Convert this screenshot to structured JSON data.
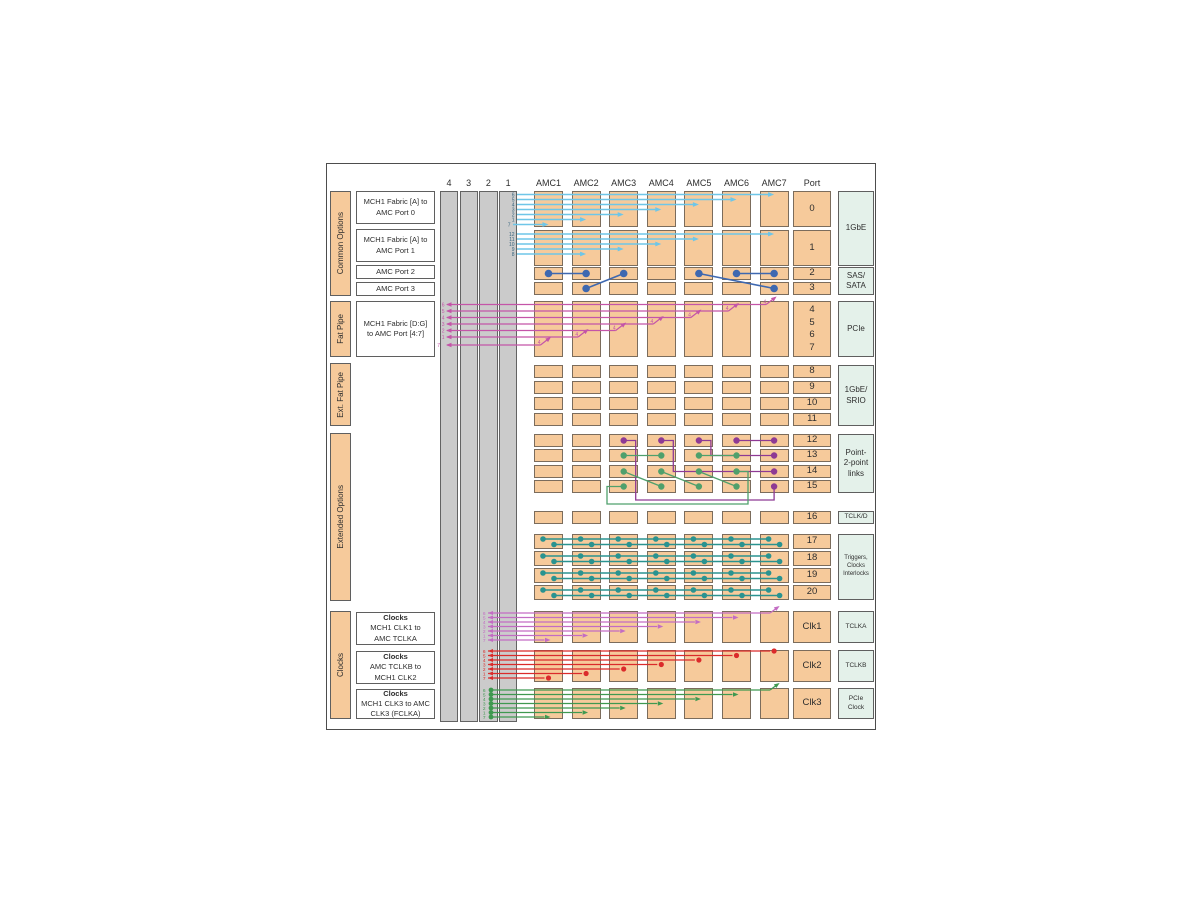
{
  "header": {
    "mch_columns": [
      "4",
      "3",
      "2",
      "1"
    ],
    "amc_slots": [
      "AMC1",
      "AMC2",
      "AMC3",
      "AMC4",
      "AMC5",
      "AMC6",
      "AMC7"
    ],
    "port_label": "Port"
  },
  "left_groups": [
    {
      "id": "common-options",
      "label": "Common Options"
    },
    {
      "id": "fat-pipe",
      "label": "Fat Pipe"
    },
    {
      "id": "ext-fat-pipe",
      "label": "Ext. Fat Pipe"
    },
    {
      "id": "extended-options",
      "label": "Extended Options"
    },
    {
      "id": "clocks",
      "label": "Clocks"
    }
  ],
  "label_boxes": [
    {
      "id": "fabric-a-port0",
      "title": "",
      "lines": [
        "MCH1 Fabric [A] to",
        "AMC Port 0"
      ]
    },
    {
      "id": "fabric-a-port1",
      "title": "",
      "lines": [
        "MCH1 Fabric [A] to",
        "AMC Port 1"
      ]
    },
    {
      "id": "amc-port2",
      "title": "",
      "lines": [
        "AMC Port 2"
      ]
    },
    {
      "id": "amc-port3",
      "title": "",
      "lines": [
        "AMC Port 3"
      ]
    },
    {
      "id": "fabric-dg",
      "title": "",
      "lines": [
        "MCH1 Fabric [D:G]",
        "to AMC Port [4:7]"
      ]
    },
    {
      "id": "clk1-label",
      "title": "Clocks",
      "lines": [
        "MCH1 CLK1 to",
        "AMC TCLKA"
      ]
    },
    {
      "id": "clk2-label",
      "title": "Clocks",
      "lines": [
        "AMC TCLKB to",
        "MCH1 CLK2"
      ]
    },
    {
      "id": "clk3-label",
      "title": "Clocks",
      "lines": [
        "MCH1 CLK3 to AMC",
        "CLK3 (FCLKA)"
      ]
    }
  ],
  "port_column": {
    "rows": [
      {
        "row": "p0",
        "labels": [
          "0"
        ]
      },
      {
        "row": "p1",
        "labels": [
          "1"
        ]
      },
      {
        "row": "p2",
        "labels": [
          "2"
        ]
      },
      {
        "row": "p3",
        "labels": [
          "3"
        ]
      },
      {
        "row": "fat",
        "labels": [
          "4",
          "5",
          "6",
          "7"
        ]
      },
      {
        "row": "p8",
        "labels": [
          "8"
        ]
      },
      {
        "row": "p9",
        "labels": [
          "9"
        ]
      },
      {
        "row": "p10",
        "labels": [
          "10"
        ]
      },
      {
        "row": "p11",
        "labels": [
          "11"
        ]
      },
      {
        "row": "p12",
        "labels": [
          "12"
        ]
      },
      {
        "row": "p13",
        "labels": [
          "13"
        ]
      },
      {
        "row": "p14",
        "labels": [
          "14"
        ]
      },
      {
        "row": "p15",
        "labels": [
          "15"
        ]
      },
      {
        "row": "p16",
        "labels": [
          "16"
        ]
      },
      {
        "row": "p17",
        "labels": [
          "17"
        ]
      },
      {
        "row": "p18",
        "labels": [
          "18"
        ]
      },
      {
        "row": "p19",
        "labels": [
          "19"
        ]
      },
      {
        "row": "p20",
        "labels": [
          "20"
        ]
      },
      {
        "row": "clk1",
        "labels": [
          "Clk1"
        ]
      },
      {
        "row": "clk2",
        "labels": [
          "Clk2"
        ]
      },
      {
        "row": "clk3",
        "labels": [
          "Clk3"
        ]
      }
    ]
  },
  "right_labels": [
    {
      "id": "1gbe",
      "rows": [
        "p0",
        "p1"
      ],
      "lines": [
        "1GbE"
      ]
    },
    {
      "id": "sas-sata",
      "rows": [
        "p2",
        "p3"
      ],
      "lines": [
        "SAS/",
        "SATA"
      ]
    },
    {
      "id": "pcie",
      "rows": [
        "fat",
        "fat"
      ],
      "lines": [
        "PCIe"
      ]
    },
    {
      "id": "1gbe-srio",
      "rows": [
        "p8",
        "p11"
      ],
      "lines": [
        "1GbE/",
        "SRIO"
      ]
    },
    {
      "id": "p2p-links",
      "rows": [
        "p12",
        "p15"
      ],
      "lines": [
        "Point-",
        "2-point",
        "links"
      ]
    },
    {
      "id": "tclk-d",
      "rows": [
        "p16",
        "p16"
      ],
      "lines": [
        "TCLK/D"
      ]
    },
    {
      "id": "triggers",
      "rows": [
        "p17",
        "p20"
      ],
      "lines": [
        "Triggers,",
        "Clocks",
        "Interlocks"
      ]
    },
    {
      "id": "tclka",
      "rows": [
        "clk1",
        "clk1"
      ],
      "lines": [
        "TCLKA"
      ]
    },
    {
      "id": "tclkb",
      "rows": [
        "clk2",
        "clk2"
      ],
      "lines": [
        "TCLKB"
      ]
    },
    {
      "id": "pcie-clock",
      "rows": [
        "clk3",
        "clk3"
      ],
      "lines": [
        "PCIe",
        "Clock"
      ]
    }
  ],
  "colors": {
    "box_fill": "#f6ca9b",
    "box_border": "#7b6c5c",
    "mint_fill": "#e4f1ea",
    "gray_col": "#cbcbcb",
    "cyan": "#6ec6e8",
    "cyan_label": "#37647e",
    "sas_blue": "#3e68b0",
    "magenta": "#c455a8",
    "p2p_purple": "#8e3a94",
    "p2p_green": "#4fa06c",
    "teal": "#2a9390",
    "clk1_violet": "#c36cc3",
    "clk2_red": "#db2b2b",
    "clk3_green": "#3f9950"
  },
  "connections": {
    "fabric_a_port0": {
      "lines": [
        {
          "label": "6",
          "to": "AMC7"
        },
        {
          "label": "5",
          "to": "AMC6"
        },
        {
          "label": "4",
          "to": "AMC5"
        },
        {
          "label": "3",
          "to": "AMC4"
        },
        {
          "label": "2",
          "to": "AMC3"
        },
        {
          "label": "1",
          "to": "AMC2"
        },
        {
          "label": "7",
          "to": "AMC1"
        }
      ]
    },
    "fabric_a_port1": {
      "lines": [
        {
          "label": "12",
          "to": "AMC7"
        },
        {
          "label": "11",
          "to": "AMC5"
        },
        {
          "label": "10",
          "to": "AMC4"
        },
        {
          "label": "9",
          "to": "AMC3"
        },
        {
          "label": "8",
          "to": "AMC2"
        }
      ]
    },
    "sas_links": [
      {
        "from": [
          "AMC1",
          "p2"
        ],
        "to": [
          "AMC2",
          "p2"
        ]
      },
      {
        "from": [
          "AMC2",
          "p3"
        ],
        "to": [
          "AMC3",
          "p2"
        ]
      },
      {
        "from": [
          "AMC5",
          "p2"
        ],
        "to": [
          "AMC7",
          "p3"
        ]
      },
      {
        "from": [
          "AMC6",
          "p2"
        ],
        "to": [
          "AMC7",
          "p2"
        ]
      }
    ],
    "fat_pipe": {
      "amc_port_label": "4",
      "lines": [
        {
          "label": "6",
          "to": "AMC7"
        },
        {
          "label": "5",
          "to": "AMC6"
        },
        {
          "label": "4",
          "to": "AMC5"
        },
        {
          "label": "3",
          "to": "AMC4"
        },
        {
          "label": "2",
          "to": "AMC3"
        },
        {
          "label": "1",
          "to": "AMC2"
        },
        {
          "label": "7",
          "to": "AMC1"
        }
      ]
    },
    "p2p_purple_links": [
      {
        "type": "line",
        "from": [
          "AMC6",
          "p12"
        ],
        "to": [
          "AMC7",
          "p12"
        ]
      },
      {
        "type": "elbow",
        "from": [
          "AMC5",
          "p12"
        ],
        "to": [
          "AMC7",
          "p13"
        ]
      },
      {
        "type": "elbow",
        "from": [
          "AMC4",
          "p12"
        ],
        "to": [
          "AMC7",
          "p14"
        ]
      },
      {
        "type": "route-bottom",
        "from": [
          "AMC3",
          "p12"
        ],
        "to": [
          "AMC7",
          "p15"
        ]
      }
    ],
    "p2p_green_links": [
      {
        "type": "line",
        "from": [
          "AMC3",
          "p13"
        ],
        "to": [
          "AMC4",
          "p13"
        ]
      },
      {
        "type": "line",
        "from": [
          "AMC5",
          "p13"
        ],
        "to": [
          "AMC6",
          "p13"
        ]
      },
      {
        "type": "line",
        "from": [
          "AMC3",
          "p14"
        ],
        "to": [
          "AMC4",
          "p15"
        ]
      },
      {
        "type": "line",
        "from": [
          "AMC4",
          "p14"
        ],
        "to": [
          "AMC5",
          "p15"
        ]
      },
      {
        "type": "line",
        "from": [
          "AMC5",
          "p14"
        ],
        "to": [
          "AMC6",
          "p15"
        ]
      },
      {
        "type": "route-left-bottom",
        "from": [
          "AMC3",
          "p15"
        ],
        "to": [
          "AMC6",
          "p14"
        ]
      }
    ],
    "triggers_bus": {
      "rows": [
        "p17",
        "p18",
        "p19",
        "p20"
      ]
    },
    "clk1": {
      "name": "MCH1 CLK1 to AMC TCLKA",
      "left_end": "arrow",
      "right_end": "arrow",
      "lines": [
        {
          "label": "6",
          "to": "AMC7"
        },
        {
          "label": "5",
          "to": "AMC6"
        },
        {
          "label": "4",
          "to": "AMC5"
        },
        {
          "label": "3",
          "to": "AMC4"
        },
        {
          "label": "2",
          "to": "AMC3"
        },
        {
          "label": "1",
          "to": "AMC2"
        },
        {
          "label": "7",
          "to": "AMC1"
        }
      ]
    },
    "clk2": {
      "name": "AMC TCLKB to MCH1 CLK2",
      "left_end": "arrow",
      "right_end": "dot",
      "lines": [
        {
          "label": "6",
          "to": "AMC7"
        },
        {
          "label": "5",
          "to": "AMC6"
        },
        {
          "label": "4",
          "to": "AMC5"
        },
        {
          "label": "3",
          "to": "AMC4"
        },
        {
          "label": "2",
          "to": "AMC3"
        },
        {
          "label": "1",
          "to": "AMC2"
        },
        {
          "label": "7",
          "to": "AMC1"
        }
      ]
    },
    "clk3": {
      "name": "MCH1 CLK3 to AMC CLK3 (FCLKA)",
      "left_end": "dot",
      "right_end": "arrow",
      "lines": [
        {
          "label": "6",
          "to": "AMC7"
        },
        {
          "label": "5",
          "to": "AMC6"
        },
        {
          "label": "4",
          "to": "AMC5"
        },
        {
          "label": "3",
          "to": "AMC4"
        },
        {
          "label": "2",
          "to": "AMC3"
        },
        {
          "label": "1",
          "to": "AMC2"
        },
        {
          "label": "7",
          "to": "AMC1"
        }
      ]
    }
  }
}
